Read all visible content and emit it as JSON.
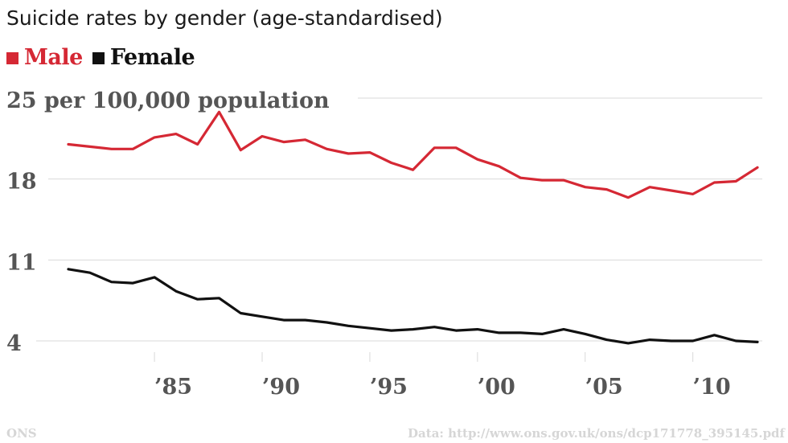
{
  "chart_data": {
    "type": "line",
    "title": "Suicide rates by gender (age-standardised)",
    "ylabel": "per 100,000 population",
    "ylim": [
      4,
      25
    ],
    "yticks": [
      4,
      11,
      18,
      25
    ],
    "xlim": [
      1981,
      2013
    ],
    "xticks": [
      1985,
      1990,
      1995,
      2000,
      2005,
      2010
    ],
    "xtick_labels": [
      "’85",
      "’90",
      "’95",
      "’00",
      "’05",
      "’10"
    ],
    "grid": "horizontal",
    "legend_position": "top-left",
    "x": [
      1981,
      1982,
      1983,
      1984,
      1985,
      1986,
      1987,
      1988,
      1989,
      1990,
      1991,
      1992,
      1993,
      1994,
      1995,
      1996,
      1997,
      1998,
      1999,
      2000,
      2001,
      2002,
      2003,
      2004,
      2005,
      2006,
      2007,
      2008,
      2009,
      2010,
      2011,
      2012,
      2013
    ],
    "series": [
      {
        "name": "Male",
        "color": "#d52834",
        "values": [
          21.0,
          20.8,
          20.6,
          20.6,
          21.6,
          21.9,
          21.0,
          23.8,
          20.5,
          21.7,
          21.2,
          21.4,
          20.6,
          20.2,
          20.3,
          19.4,
          18.8,
          20.7,
          20.7,
          19.7,
          19.1,
          18.1,
          17.9,
          17.9,
          17.3,
          17.1,
          16.4,
          17.3,
          17.0,
          16.7,
          17.7,
          17.8,
          19.0
        ]
      },
      {
        "name": "Female",
        "color": "#111111",
        "values": [
          10.2,
          9.9,
          9.1,
          9.0,
          9.5,
          8.3,
          7.6,
          7.7,
          6.4,
          6.1,
          5.8,
          5.8,
          5.6,
          5.3,
          5.1,
          4.9,
          5.0,
          5.2,
          4.9,
          5.0,
          4.7,
          4.7,
          4.6,
          5.0,
          4.6,
          4.1,
          3.8,
          4.1,
          4.0,
          4.0,
          4.5,
          4.0,
          3.9
        ]
      }
    ]
  },
  "footer": {
    "source": "ONS",
    "data_url": "Data: http://www.ons.gov.uk/ons/dcp171778_395145.pdf"
  },
  "colors": {
    "grid": "#d9d9d9",
    "tick_label": "#555555",
    "footer_text": "#d6d6d6"
  }
}
